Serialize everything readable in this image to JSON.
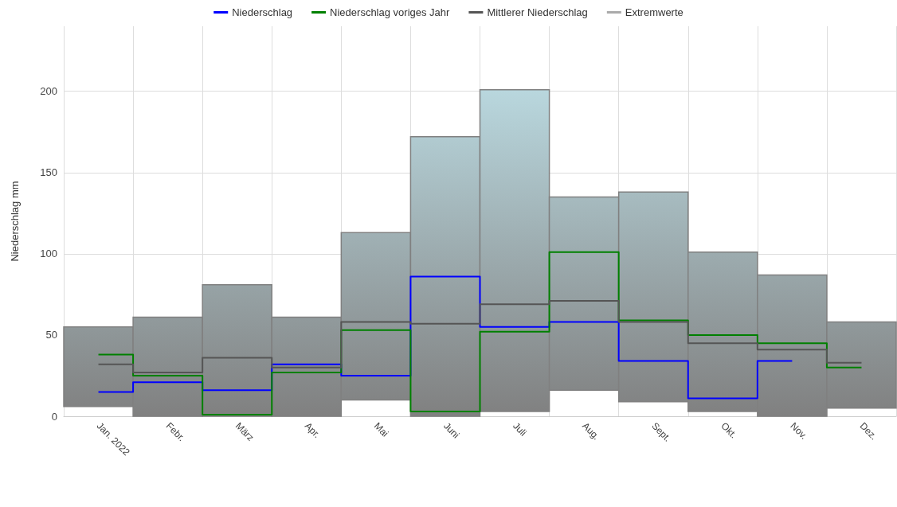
{
  "chart_data": {
    "type": "step",
    "ylabel": "Niederschlag mm",
    "categories": [
      "Jan. 2022",
      "Febr.",
      "März",
      "Apr.",
      "Mai",
      "Juni",
      "Juli",
      "Aug.",
      "Sept.",
      "Okt.",
      "Nov.",
      "Dez."
    ],
    "ylim": [
      0,
      240
    ],
    "yticks": [
      0,
      50,
      100,
      150,
      200
    ],
    "grid": true,
    "legend": "top",
    "marker": "none",
    "series": [
      {
        "name": "Niederschlag",
        "color": "#0000ff",
        "values": [
          15,
          21,
          16,
          32,
          25,
          86,
          55,
          58,
          34,
          11,
          34,
          null
        ]
      },
      {
        "name": "Niederschlag voriges Jahr",
        "color": "#008000",
        "values": [
          38,
          25,
          1,
          27,
          53,
          3,
          52,
          101,
          59,
          50,
          45,
          30
        ]
      },
      {
        "name": "Mittlerer Niederschlag",
        "color": "#555555",
        "values": [
          32,
          27,
          36,
          30,
          58,
          57,
          69,
          71,
          58,
          45,
          41,
          33
        ]
      },
      {
        "name": "Extremwerte",
        "type": "bar",
        "color": "#808080",
        "base": [
          6,
          0,
          0,
          0,
          10,
          0,
          3,
          16,
          9,
          3,
          0,
          5
        ],
        "values": [
          49,
          61,
          81,
          61,
          103,
          172,
          198,
          119,
          129,
          98,
          87,
          53
        ]
      }
    ]
  }
}
